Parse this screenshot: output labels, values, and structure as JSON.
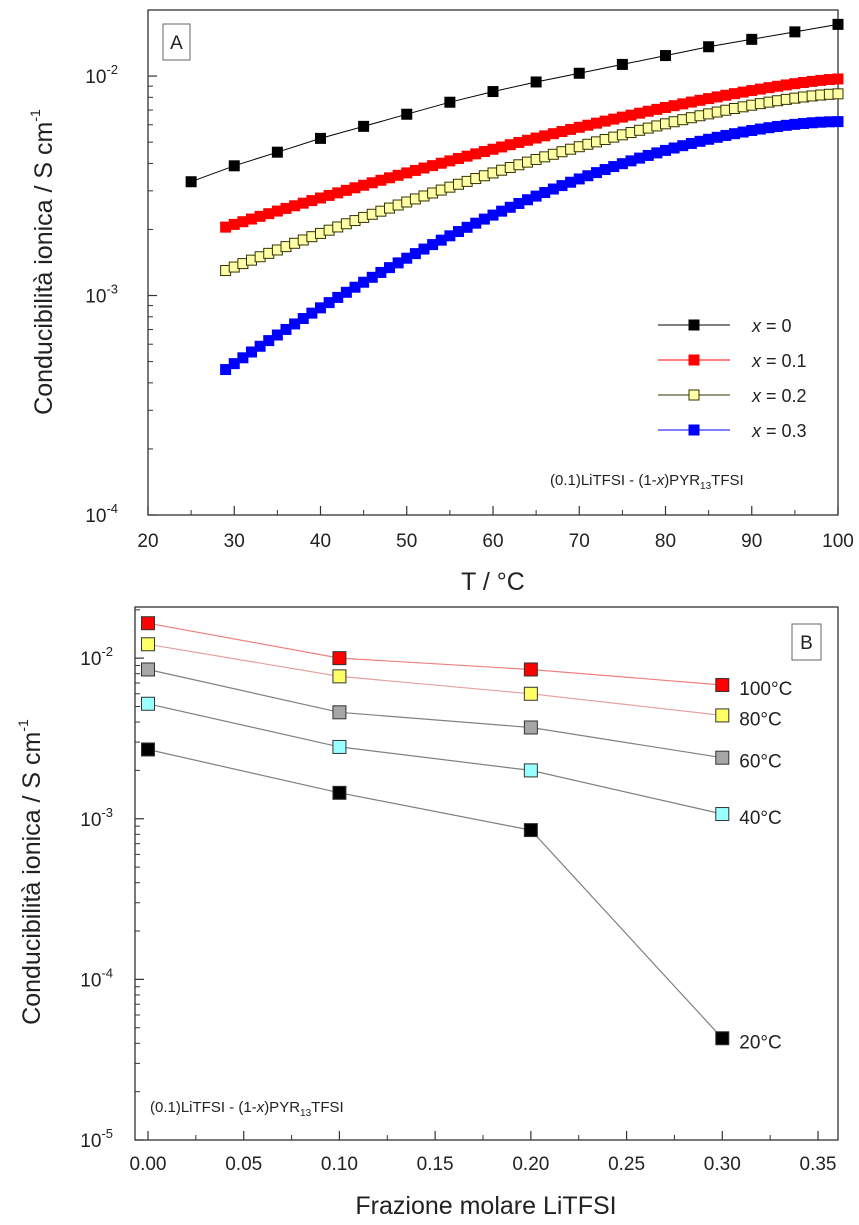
{
  "chart_data": [
    {
      "type": "scatter",
      "panel_label": "A",
      "xlabel": "T / °C",
      "ylabel": "Conducibilità ionica / S cm",
      "ylabel_sup": "-1",
      "xlim": [
        20,
        100
      ],
      "ylim": [
        0.0001,
        0.02
      ],
      "yscale": "log",
      "x_ticks": [
        "20",
        "30",
        "40",
        "50",
        "60",
        "70",
        "80",
        "90",
        "100"
      ],
      "y_ticks": [
        {
          "base": "10",
          "exp": "-4",
          "value": 0.0001
        },
        {
          "base": "10",
          "exp": "-3",
          "value": 0.001
        },
        {
          "base": "10",
          "exp": "-2",
          "value": 0.01
        }
      ],
      "legend_position": "lower-right",
      "annotation": {
        "pre": "(0.1)LiTFSI - (1-",
        "x": "x",
        "mid": ")PYR",
        "sub": "13",
        "post": "TFSI"
      },
      "series": [
        {
          "name": "x = 0",
          "legend_var": "x",
          "legend_val": "= 0",
          "color": "#000000",
          "fill": "#000000",
          "marker_size": 10,
          "x": [
            25,
            30,
            35,
            40,
            45,
            50,
            55,
            60,
            65,
            70,
            75,
            80,
            85,
            90,
            95,
            100
          ],
          "y": [
            0.0033,
            0.0039,
            0.0045,
            0.0052,
            0.0059,
            0.0067,
            0.0076,
            0.0085,
            0.0094,
            0.0103,
            0.0113,
            0.0124,
            0.0136,
            0.0147,
            0.0159,
            0.0172
          ]
        },
        {
          "name": "x = 0.1",
          "legend_var": "x",
          "legend_val": "= 0.1",
          "color": "#ff0000",
          "fill": "#ff0000",
          "marker_size": 10,
          "x_start": 29,
          "x_end": 100,
          "x_step": 1,
          "y_start": 0.00205,
          "y_end": 0.0097,
          "curve": 1.3
        },
        {
          "name": "x = 0.2",
          "legend_var": "x",
          "legend_val": "= 0.2",
          "color": "#333300",
          "fill": "#ffffa8",
          "marker_size": 10,
          "x_start": 29,
          "x_end": 100,
          "x_step": 1,
          "y_start": 0.0013,
          "y_end": 0.0083,
          "curve": 1.4
        },
        {
          "name": "x = 0.3",
          "legend_var": "x",
          "legend_val": "= 0.3",
          "color": "#0000ff",
          "fill": "#0000ff",
          "marker_size": 10,
          "x_start": 29,
          "x_end": 100,
          "x_step": 1,
          "y_start": 0.00046,
          "y_end": 0.0062,
          "curve": 1.7
        }
      ]
    },
    {
      "type": "line",
      "panel_label": "B",
      "xlabel": "Frazione molare LiTFSI",
      "ylabel": "Conducibilità ionica / S cm",
      "ylabel_sup": "-1",
      "xlim": [
        0,
        0.35
      ],
      "ylim": [
        1e-05,
        0.03
      ],
      "yscale": "log",
      "x_ticks": [
        "0.00",
        "0.05",
        "0.10",
        "0.15",
        "0.20",
        "0.25",
        "0.30",
        "0.35"
      ],
      "y_ticks": [
        {
          "base": "10",
          "exp": "-5",
          "value": 1e-05
        },
        {
          "base": "10",
          "exp": "-4",
          "value": 0.0001
        },
        {
          "base": "10",
          "exp": "-3",
          "value": 0.001
        },
        {
          "base": "10",
          "exp": "-2",
          "value": 0.01
        }
      ],
      "annotation": {
        "pre": "(0.1)LiTFSI - (1-",
        "x": "x",
        "mid": ")PYR",
        "sub": "13",
        "post": "TFSI"
      },
      "x": [
        0.0,
        0.1,
        0.2,
        0.3
      ],
      "series": [
        {
          "name": "100°C",
          "color": "#ff0000",
          "line": "#f08080",
          "values": [
            0.0165,
            0.01,
            0.0085,
            0.0068
          ]
        },
        {
          "name": "80°C",
          "color": "#ffff66",
          "line": "#e6a0a0",
          "values": [
            0.0122,
            0.0077,
            0.006,
            0.0044
          ]
        },
        {
          "name": "60°C",
          "color": "#a6a6a6",
          "line": "#808080",
          "values": [
            0.0085,
            0.0046,
            0.0037,
            0.0024
          ]
        },
        {
          "name": "40°C",
          "color": "#99ffff",
          "line": "#808080",
          "values": [
            0.0052,
            0.0028,
            0.002,
            0.00107
          ]
        },
        {
          "name": "20°C",
          "color": "#000000",
          "line": "#808080",
          "values": [
            0.0027,
            0.00145,
            0.00085,
            4.3e-05
          ]
        }
      ]
    }
  ]
}
